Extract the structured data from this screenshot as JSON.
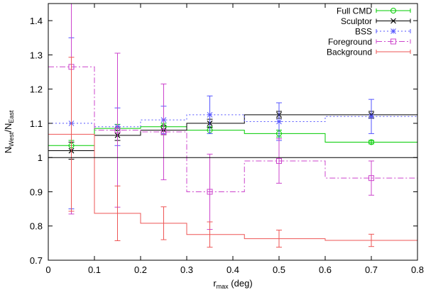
{
  "chart_data": {
    "type": "line",
    "title": "",
    "xlabel": {
      "main": "r",
      "sub": "max",
      "rest": " (deg)"
    },
    "ylabel": {
      "n1": "N",
      "s1": "West",
      "sep": "/N",
      "s2": "East"
    },
    "xlim": [
      0,
      0.8
    ],
    "ylim": [
      0.7,
      1.45
    ],
    "x_ticks": [
      "0",
      "0.1",
      "0.2",
      "0.3",
      "0.4",
      "0.5",
      "0.6",
      "0.7",
      "0.8"
    ],
    "x_tick_values": [
      0,
      0.1,
      0.2,
      0.3,
      0.4,
      0.5,
      0.6,
      0.7,
      0.8
    ],
    "y_ticks": [
      "0.7",
      "0.8",
      "0.9",
      "1",
      "1.1",
      "1.2",
      "1.3",
      "1.4"
    ],
    "y_tick_values": [
      0.7,
      0.8,
      0.9,
      1.0,
      1.1,
      1.2,
      1.3,
      1.4
    ],
    "reference_line": 1.0,
    "grid": false,
    "legend_position": "top-right",
    "bin_edges": [
      0,
      0.1,
      0.2,
      0.3,
      0.425,
      0.6,
      0.8
    ],
    "series": [
      {
        "name": "Full CMD",
        "color": "#00cc00",
        "marker": "circle",
        "dash": "",
        "x": [
          0.05,
          0.15,
          0.25,
          0.35,
          0.5,
          0.7
        ],
        "y": [
          1.035,
          1.085,
          1.09,
          1.08,
          1.07,
          1.045
        ],
        "err": [
          0.015,
          0.012,
          0.01,
          0.01,
          0.01,
          0.005
        ]
      },
      {
        "name": "Sculptor",
        "color": "#000000",
        "marker": "x",
        "dash": "",
        "x": [
          0.05,
          0.15,
          0.25,
          0.35,
          0.5,
          0.7
        ],
        "y": [
          1.02,
          1.065,
          1.08,
          1.1,
          1.125,
          1.125
        ],
        "err": [
          0.025,
          0.015,
          0.013,
          0.012,
          0.01,
          0.01
        ]
      },
      {
        "name": "BSS",
        "color": "#5555ff",
        "marker": "star",
        "dash": "2,3",
        "x": [
          0.05,
          0.15,
          0.25,
          0.35,
          0.5,
          0.7
        ],
        "y": [
          1.1,
          1.09,
          1.11,
          1.125,
          1.105,
          1.12
        ],
        "err": [
          0.25,
          0.055,
          0.04,
          0.055,
          0.055,
          0.05
        ]
      },
      {
        "name": "Foreground",
        "color": "#cc44cc",
        "marker": "square",
        "dash": "8,3,2,3",
        "x": [
          0.05,
          0.15,
          0.25,
          0.35,
          0.5,
          0.7
        ],
        "y": [
          1.265,
          1.08,
          1.075,
          0.9,
          0.99,
          0.94
        ],
        "err": [
          0.43,
          0.225,
          0.14,
          0.11,
          0.065,
          0.05
        ]
      },
      {
        "name": "Background",
        "color": "#ee5555",
        "marker": "none",
        "dash": "",
        "x": [
          0.05,
          0.15,
          0.25,
          0.35,
          0.5,
          0.7
        ],
        "y": [
          1.068,
          0.837,
          0.808,
          0.775,
          0.763,
          0.758
        ],
        "err": [
          0.225,
          0.08,
          0.048,
          0.037,
          0.025,
          0.018
        ]
      }
    ]
  }
}
